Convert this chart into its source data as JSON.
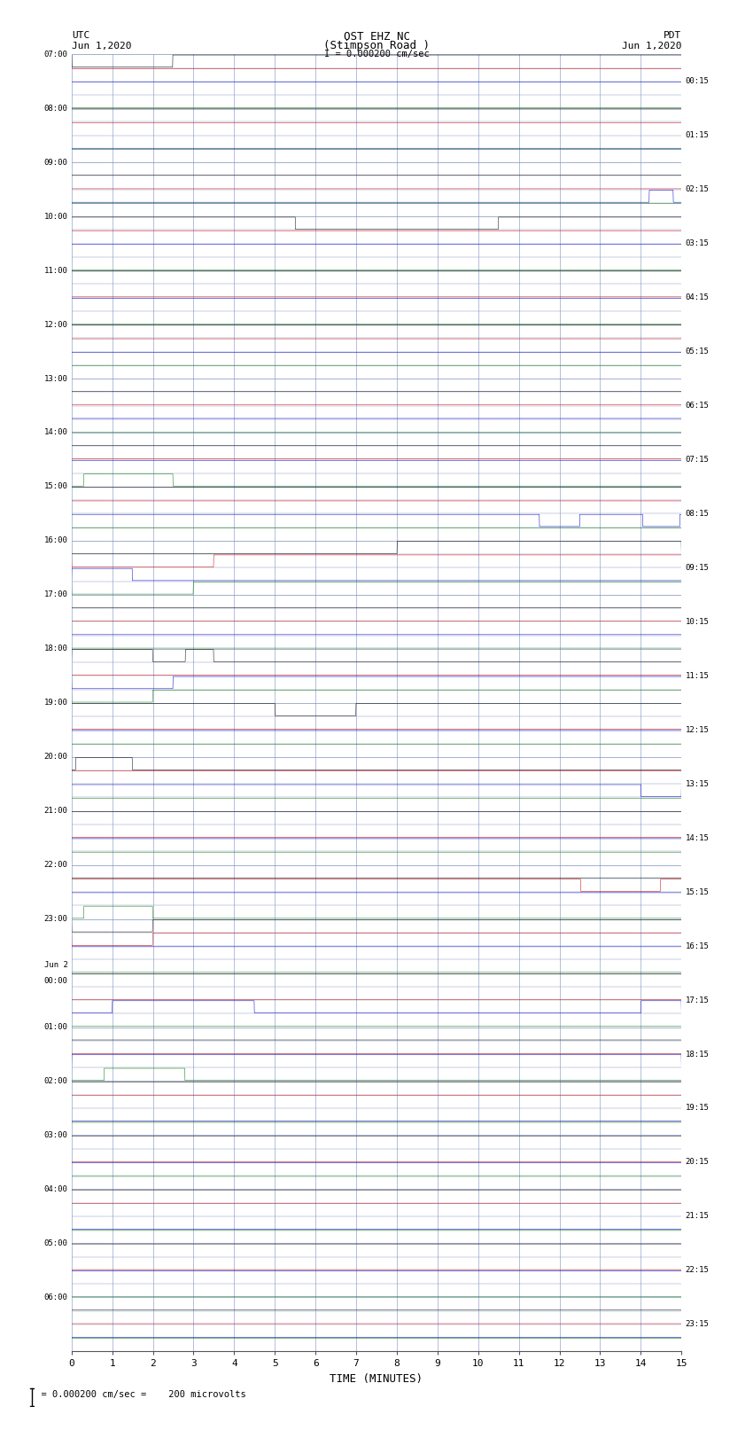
{
  "title_line1": "OST EHZ NC",
  "title_line2": "(Stimpson Road )",
  "scale_label": "I = 0.000200 cm/sec",
  "left_label_top": "UTC",
  "left_label_date": "Jun 1,2020",
  "right_label_top": "PDT",
  "right_label_date": "Jun 1,2020",
  "xlabel": "TIME (MINUTES)",
  "footnote": "= 0.000200 cm/sec =    200 microvolts",
  "x_ticks": [
    0,
    1,
    2,
    3,
    4,
    5,
    6,
    7,
    8,
    9,
    10,
    11,
    12,
    13,
    14,
    15
  ],
  "left_times": [
    "07:00",
    "08:00",
    "09:00",
    "10:00",
    "11:00",
    "12:00",
    "13:00",
    "14:00",
    "15:00",
    "16:00",
    "17:00",
    "18:00",
    "19:00",
    "20:00",
    "21:00",
    "22:00",
    "23:00",
    "Jun 2\n00:00",
    "01:00",
    "02:00",
    "03:00",
    "04:00",
    "05:00",
    "06:00"
  ],
  "right_times": [
    "00:15",
    "01:15",
    "02:15",
    "03:15",
    "04:15",
    "05:15",
    "06:15",
    "07:15",
    "08:15",
    "09:15",
    "10:15",
    "11:15",
    "12:15",
    "13:15",
    "14:15",
    "15:15",
    "16:15",
    "17:15",
    "18:15",
    "19:15",
    "20:15",
    "21:15",
    "22:15",
    "23:15"
  ],
  "n_rows": 24,
  "n_sub": 4,
  "n_minutes": 15,
  "bg_color": "#ffffff",
  "grid_color": "#7f8fbf",
  "trace_colors": [
    "#000000",
    "#cc0000",
    "#0000cc",
    "#007700"
  ],
  "figsize": [
    8.5,
    16.13
  ],
  "dpi": 100,
  "samples_per_row": 3000
}
